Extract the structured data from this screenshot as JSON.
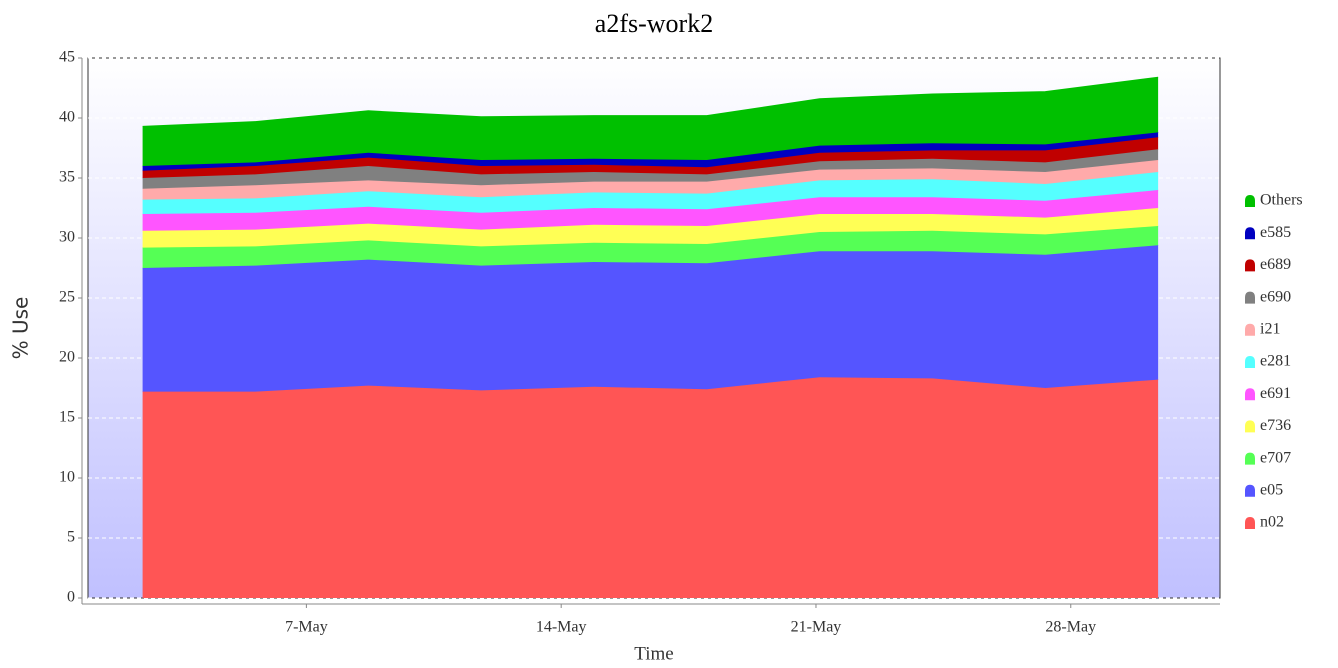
{
  "chart_data": {
    "type": "stacked_area",
    "title": "a2fs-work2",
    "xlabel": "Time",
    "ylabel": "% Use",
    "x": [
      2.5,
      5.6,
      8.7,
      11.8,
      14.9,
      18.0,
      21.1,
      24.2,
      27.3,
      30.4
    ],
    "xlim": [
      1,
      32.1
    ],
    "xticks": [
      {
        "value": 7,
        "label": "7-May"
      },
      {
        "value": 14,
        "label": "14-May"
      },
      {
        "value": 21,
        "label": "21-May"
      },
      {
        "value": 28,
        "label": "28-May"
      }
    ],
    "ylim": [
      0,
      45
    ],
    "yticks": [
      0,
      5,
      10,
      15,
      20,
      25,
      30,
      35,
      40,
      45
    ],
    "grid": true,
    "legend": "right",
    "series": [
      {
        "name": "n02",
        "color": "#ff5555",
        "values": [
          17.2,
          17.2,
          17.7,
          17.3,
          17.6,
          17.4,
          18.4,
          18.3,
          17.5,
          18.2
        ]
      },
      {
        "name": "e05",
        "color": "#5555ff",
        "values": [
          10.3,
          10.5,
          10.5,
          10.4,
          10.4,
          10.5,
          10.5,
          10.6,
          11.1,
          11.2
        ]
      },
      {
        "name": "e707",
        "color": "#55ff55",
        "values": [
          1.7,
          1.6,
          1.6,
          1.6,
          1.6,
          1.6,
          1.6,
          1.7,
          1.7,
          1.6
        ]
      },
      {
        "name": "e736",
        "color": "#ffff55",
        "values": [
          1.4,
          1.4,
          1.4,
          1.4,
          1.5,
          1.5,
          1.5,
          1.4,
          1.4,
          1.5
        ]
      },
      {
        "name": "e691",
        "color": "#ff55ff",
        "values": [
          1.4,
          1.4,
          1.4,
          1.4,
          1.4,
          1.4,
          1.4,
          1.4,
          1.4,
          1.5
        ]
      },
      {
        "name": "e281",
        "color": "#55ffff",
        "values": [
          1.2,
          1.2,
          1.3,
          1.3,
          1.3,
          1.3,
          1.4,
          1.5,
          1.4,
          1.5
        ]
      },
      {
        "name": "i21",
        "color": "#ffaaaa",
        "values": [
          0.9,
          1.1,
          0.9,
          1.0,
          0.9,
          1.0,
          0.9,
          0.9,
          1.0,
          1.0
        ]
      },
      {
        "name": "e690",
        "color": "#808080",
        "values": [
          0.9,
          0.9,
          1.2,
          0.9,
          0.8,
          0.6,
          0.7,
          0.8,
          0.8,
          0.9
        ]
      },
      {
        "name": "e689",
        "color": "#c00000",
        "values": [
          0.6,
          0.7,
          0.7,
          0.7,
          0.6,
          0.6,
          0.7,
          0.7,
          1.0,
          1.0
        ]
      },
      {
        "name": "e585",
        "color": "#0000c0",
        "values": [
          0.4,
          0.3,
          0.4,
          0.5,
          0.5,
          0.6,
          0.6,
          0.6,
          0.5,
          0.4
        ]
      },
      {
        "name": "Others",
        "color": "#00c000",
        "values": [
          3.3,
          3.4,
          3.5,
          3.6,
          3.6,
          3.7,
          3.9,
          4.1,
          4.4,
          4.6
        ]
      }
    ]
  }
}
